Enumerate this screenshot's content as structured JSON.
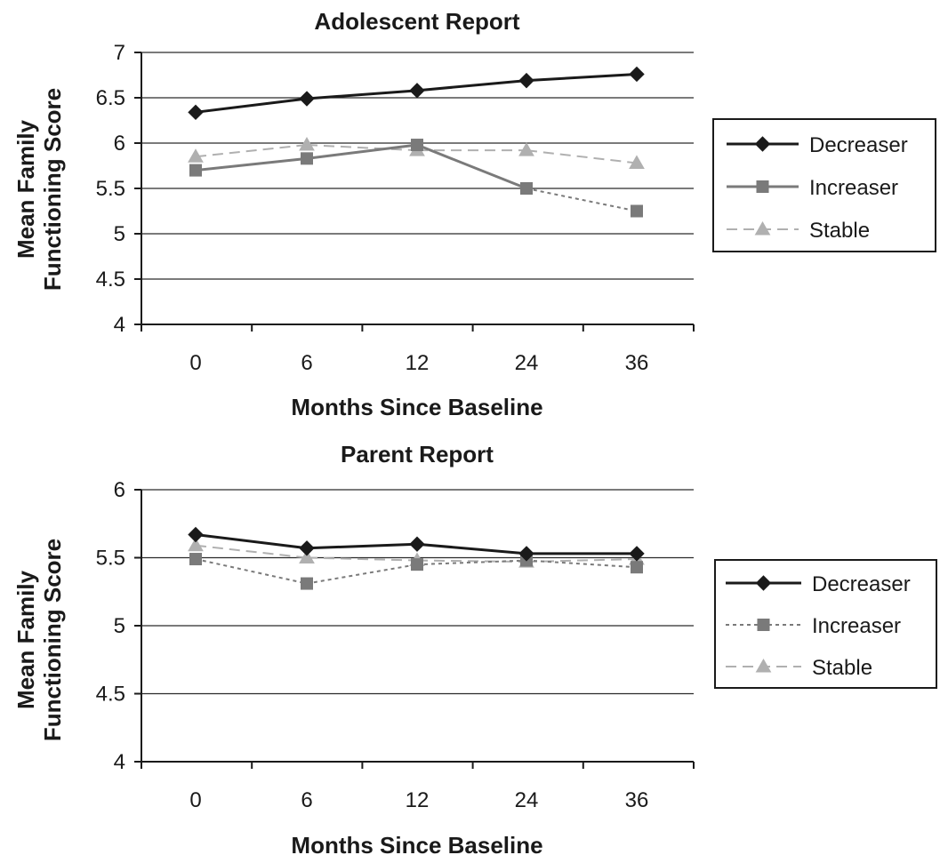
{
  "chart_data": [
    {
      "type": "line",
      "title": "Adolescent Report",
      "xlabel": "Months Since Baseline",
      "ylabel": [
        "Mean Family",
        "Functioning Score"
      ],
      "categories": [
        "0",
        "6",
        "12",
        "24",
        "36"
      ],
      "yticks": [
        "4",
        "4.5",
        "5",
        "5.5",
        "6",
        "6.5",
        "7"
      ],
      "ylim": [
        4,
        7
      ],
      "grid": true,
      "legend_position": "right",
      "series": [
        {
          "name": "Decreaser",
          "values": [
            6.34,
            6.49,
            6.58,
            6.69,
            6.76
          ],
          "color": "#1a1a1a",
          "marker": "diamond",
          "line": "solid",
          "segment_styles": [
            "solid",
            "solid",
            "solid",
            "solid"
          ]
        },
        {
          "name": "Increaser",
          "values": [
            5.7,
            5.83,
            5.98,
            5.5,
            5.25
          ],
          "color": "#7a7a7a",
          "marker": "square",
          "line": "solid",
          "segment_styles": [
            "solid",
            "solid",
            "solid",
            "dotted"
          ]
        },
        {
          "name": "Stable",
          "values": [
            5.85,
            5.98,
            5.92,
            5.92,
            5.78
          ],
          "color": "#b0b0b0",
          "marker": "triangle",
          "line": "dashed",
          "segment_styles": [
            "dashed",
            "dashed",
            "dashed",
            "dashed"
          ]
        }
      ]
    },
    {
      "type": "line",
      "title": "Parent Report",
      "xlabel": "Months Since Baseline",
      "ylabel": [
        "Mean Family",
        "Functioning Score"
      ],
      "categories": [
        "0",
        "6",
        "12",
        "24",
        "36"
      ],
      "yticks": [
        "4",
        "4.5",
        "5",
        "5.5",
        "6"
      ],
      "ylim": [
        4,
        6
      ],
      "grid": true,
      "legend_position": "right",
      "series": [
        {
          "name": "Decreaser",
          "values": [
            5.67,
            5.57,
            5.6,
            5.53,
            5.53
          ],
          "color": "#1a1a1a",
          "marker": "diamond",
          "line": "solid",
          "segment_styles": [
            "solid",
            "solid",
            "solid",
            "solid"
          ]
        },
        {
          "name": "Increaser",
          "values": [
            5.49,
            5.31,
            5.45,
            5.48,
            5.43
          ],
          "color": "#7a7a7a",
          "marker": "square",
          "line": "dotted",
          "segment_styles": [
            "dotted",
            "dotted",
            "dotted",
            "dotted"
          ]
        },
        {
          "name": "Stable",
          "values": [
            5.59,
            5.5,
            5.48,
            5.47,
            5.49
          ],
          "color": "#b0b0b0",
          "marker": "triangle",
          "line": "dashed",
          "segment_styles": [
            "dashed",
            "dashed",
            "dashed",
            "dashed"
          ]
        }
      ]
    }
  ]
}
